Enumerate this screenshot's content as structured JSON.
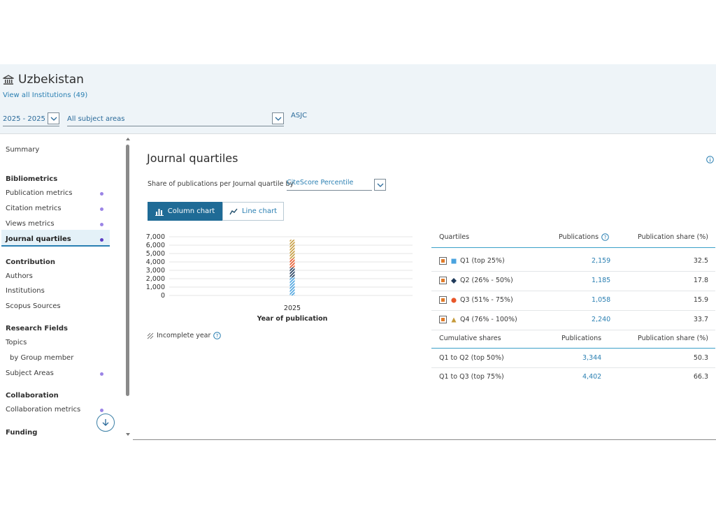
{
  "header": {
    "title": "Uzbekistan",
    "view_all": "View all Institutions (49)",
    "year_range": "2025 - 2025",
    "subject_areas": "All subject areas",
    "classification": "ASJC"
  },
  "sidebar": {
    "summary": "Summary",
    "sections": [
      {
        "title": "Bibliometrics",
        "items": [
          "Publication metrics",
          "Citation metrics",
          "Views metrics",
          "Journal quartiles"
        ]
      },
      {
        "title": "Contribution",
        "items": [
          "Authors",
          "Institutions",
          "Scopus Sources"
        ]
      },
      {
        "title": "Research Fields",
        "items": [
          "Topics",
          "by Group member",
          "Subject Areas"
        ]
      },
      {
        "title": "Collaboration",
        "items": [
          "Collaboration metrics"
        ]
      },
      {
        "title": "Funding",
        "items": []
      }
    ],
    "active_item": "Journal quartiles"
  },
  "main": {
    "title": "Journal quartiles",
    "share_text": "Share of publications per Journal quartile by",
    "share_select": "CiteScore Percentile",
    "btn_column": "Column chart",
    "btn_line": "Line chart",
    "incomplete_year": "Incomplete year"
  },
  "chart_data": {
    "type": "bar",
    "stacked": true,
    "categories": [
      "2025"
    ],
    "series": [
      {
        "name": "Q1 (top 25%)",
        "values": [
          2159
        ],
        "color": "#4aa3df"
      },
      {
        "name": "Q2 (26% - 50%)",
        "values": [
          1185
        ],
        "color": "#1f3a5a"
      },
      {
        "name": "Q3 (51% - 75%)",
        "values": [
          1058
        ],
        "color": "#e8572a"
      },
      {
        "name": "Q4 (76% - 100%)",
        "values": [
          2240
        ],
        "color": "#c59a3a"
      }
    ],
    "xlabel": "Year of publication",
    "ylabel": "",
    "ylim": [
      0,
      7000
    ],
    "yticks": [
      "0",
      "1,000",
      "2,000",
      "3,000",
      "4,000",
      "5,000",
      "6,000",
      "7,000"
    ],
    "grid": true
  },
  "table": {
    "headers": {
      "quartiles": "Quartiles",
      "publications": "Publications",
      "share": "Publication share (%)"
    },
    "rows": [
      {
        "label": "Q1 (top 25%)",
        "pubs": "2,159",
        "share": "32.5",
        "marker": "square",
        "color": "#4aa3df"
      },
      {
        "label": "Q2 (26% - 50%)",
        "pubs": "1,185",
        "share": "17.8",
        "marker": "diamond",
        "color": "#1f3a5a"
      },
      {
        "label": "Q3 (51% - 75%)",
        "pubs": "1,058",
        "share": "15.9",
        "marker": "circle",
        "color": "#e8572a"
      },
      {
        "label": "Q4 (76% - 100%)",
        "pubs": "2,240",
        "share": "33.7",
        "marker": "triangle",
        "color": "#c59a3a"
      }
    ],
    "cum_headers": {
      "label": "Cumulative shares",
      "publications": "Publications",
      "share": "Publication share (%)"
    },
    "cum_rows": [
      {
        "label": "Q1 to Q2 (top 50%)",
        "pubs": "3,344",
        "share": "50.3"
      },
      {
        "label": "Q1 to Q3 (top 75%)",
        "pubs": "4,402",
        "share": "66.3"
      }
    ]
  }
}
